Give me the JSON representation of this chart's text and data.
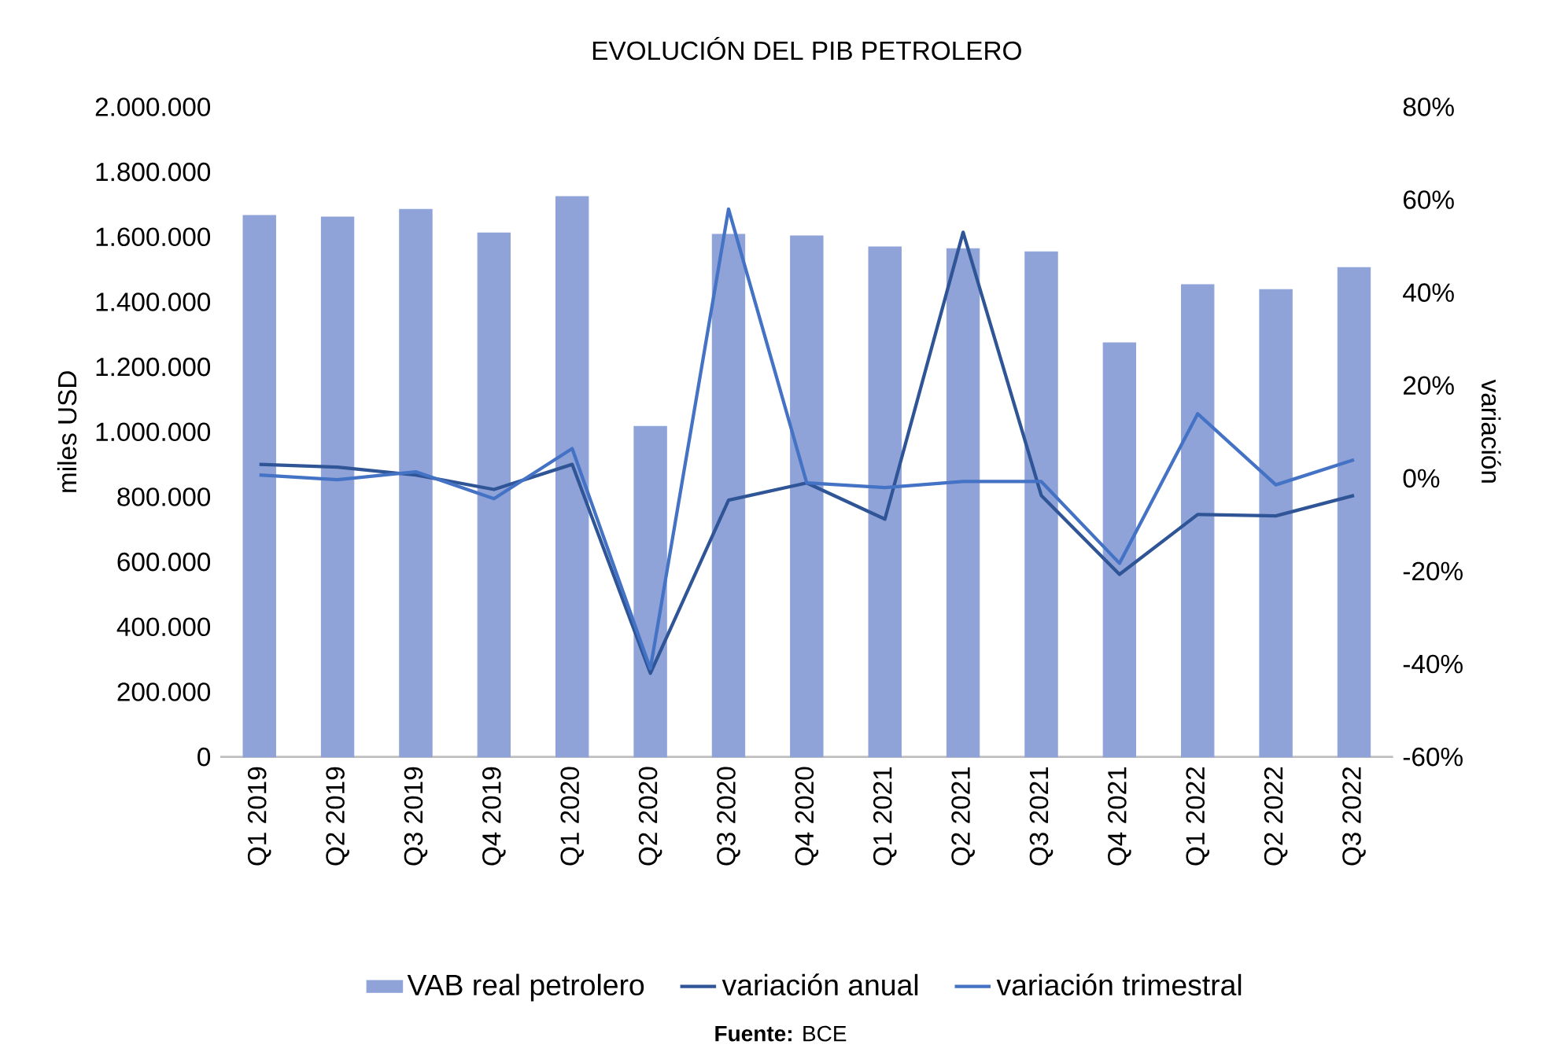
{
  "chart_data": {
    "type": "bar",
    "title": "EVOLUCIÓN DEL PIB PETROLERO",
    "categories": [
      "Q1 2019",
      "Q2 2019",
      "Q3 2019",
      "Q4 2019",
      "Q1 2020",
      "Q2 2020",
      "Q3 2020",
      "Q4 2020",
      "Q1 2021",
      "Q2 2021",
      "Q3 2021",
      "Q4 2021",
      "Q1 2022",
      "Q2 2022",
      "Q3 2022"
    ],
    "series": [
      {
        "name": "VAB real petrolero",
        "color": "#8fa3d9",
        "values": [
          1666000,
          1661000,
          1685000,
          1612000,
          1724000,
          1017000,
          1608000,
          1603000,
          1569000,
          1564000,
          1554000,
          1274000,
          1453000,
          1438000,
          1506000
        ]
      },
      {
        "name": "variación anual",
        "type": "line",
        "axis": "y2",
        "color": "#2f5597",
        "values": [
          3,
          2.4,
          0.7,
          -2.4,
          3,
          -42,
          -4.7,
          -1,
          -8.8,
          53,
          -3.7,
          -20.7,
          -7.8,
          -8.1,
          -3.7
        ]
      },
      {
        "name": "variación trimestral",
        "type": "line",
        "axis": "y2",
        "color": "#4472c4",
        "values": [
          0.7,
          -0.3,
          1.4,
          -4.4,
          6.4,
          -41,
          58,
          -1,
          -2,
          -0.7,
          -0.7,
          -18.3,
          13.9,
          -1.4,
          4
        ]
      }
    ],
    "ylabel": "miles USD",
    "y2label": "variación",
    "ylim": [
      0,
      2000000
    ],
    "yticks": [
      0,
      {
        "value": 200000,
        "label": "200.000"
      },
      {
        "value": 400000,
        "label": "400.000"
      },
      {
        "value": 600000,
        "label": "600.000"
      },
      {
        "value": 800000,
        "label": "800.000"
      },
      {
        "value": 1000000,
        "label": "1.000.000"
      },
      {
        "value": 1200000,
        "label": "1.200.000"
      },
      {
        "value": 1400000,
        "label": "1.400.000"
      },
      {
        "value": 1600000,
        "label": "1.600.000"
      },
      {
        "value": 1800000,
        "label": "1.800.000"
      },
      {
        "value": 2000000,
        "label": "2.000.000"
      }
    ],
    "y2lim": [
      -60,
      80
    ],
    "y2ticks": [
      {
        "value": -60,
        "label": "-60%"
      },
      {
        "value": -40,
        "label": "-40%"
      },
      {
        "value": -20,
        "label": "-20%"
      },
      {
        "value": 0,
        "label": "0%"
      },
      {
        "value": 20,
        "label": "20%"
      },
      {
        "value": 40,
        "label": "40%"
      },
      {
        "value": 60,
        "label": "60%"
      },
      {
        "value": 80,
        "label": "80%"
      }
    ],
    "legend": "bottom",
    "annotations": [
      "**Fuente:** BCE"
    ]
  }
}
